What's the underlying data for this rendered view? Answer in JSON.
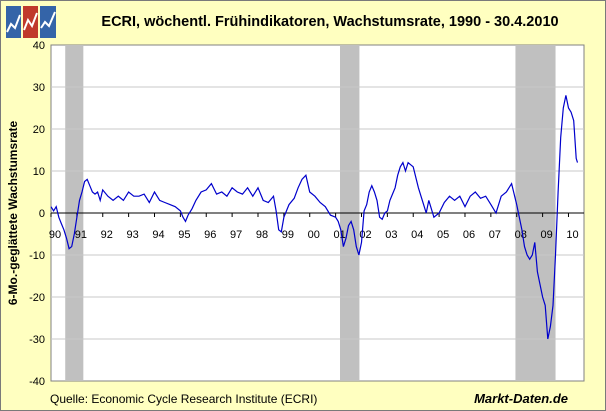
{
  "title": "ECRI, wöchentl. Frühindikatoren, Wachstumsrate, 1990 - 30.4.2010",
  "source": "Quelle: Economic Cycle Research Institute (ECRI)",
  "brand": "Markt-Daten.de",
  "colors": {
    "background": "#ffffc0",
    "plot_background": "#ffffff",
    "recession_shading": "#c0c0c0",
    "line": "#0000cc",
    "zero_line": "#000000",
    "grid": "#c8c8c8",
    "logo_blue": "#3464a8",
    "logo_red": "#c0392b"
  },
  "chart_data": {
    "type": "line",
    "title": "ECRI, wöchentl. Frühindikatoren, Wachstumsrate, 1990 - 30.4.2010",
    "xlabel": "",
    "ylabel": "6-Mo.-geglättete Wachstumsrate",
    "xlim": [
      1990.0,
      2010.6
    ],
    "ylim": [
      -40,
      40
    ],
    "yticks": [
      40,
      30,
      20,
      10,
      0,
      -10,
      -20,
      -30,
      -40
    ],
    "xtick_labels": [
      "90",
      "91",
      "92",
      "93",
      "94",
      "95",
      "96",
      "97",
      "98",
      "99",
      "00",
      "01",
      "02",
      "03",
      "04",
      "05",
      "06",
      "07",
      "08",
      "09",
      "10"
    ],
    "grid": true,
    "legend": "none",
    "recessions": [
      [
        1990.55,
        1991.25
      ],
      [
        2001.17,
        2001.92
      ],
      [
        2007.95,
        2009.5
      ]
    ],
    "series": [
      {
        "x": [
          1990.0,
          1990.1,
          1990.2,
          1990.3,
          1990.4,
          1990.5,
          1990.6,
          1990.7,
          1990.8,
          1990.9,
          1991.0,
          1991.1,
          1991.2,
          1991.3,
          1991.4,
          1991.5,
          1991.6,
          1991.7,
          1991.8,
          1991.9,
          1992.0,
          1992.2,
          1992.4,
          1992.6,
          1992.8,
          1993.0,
          1993.2,
          1993.4,
          1993.6,
          1993.8,
          1994.0,
          1994.2,
          1994.4,
          1994.6,
          1994.8,
          1995.0,
          1995.1,
          1995.2,
          1995.3,
          1995.45,
          1995.6,
          1995.8,
          1996.0,
          1996.2,
          1996.4,
          1996.6,
          1996.8,
          1997.0,
          1997.2,
          1997.4,
          1997.6,
          1997.8,
          1998.0,
          1998.2,
          1998.4,
          1998.6,
          1998.7,
          1998.8,
          1998.9,
          1999.0,
          1999.2,
          1999.4,
          1999.55,
          1999.7,
          1999.85,
          2000.0,
          2000.2,
          2000.4,
          2000.6,
          2000.8,
          2001.0,
          2001.1,
          2001.2,
          2001.3,
          2001.4,
          2001.5,
          2001.6,
          2001.7,
          2001.8,
          2001.9,
          2002.0,
          2002.1,
          2002.2,
          2002.3,
          2002.4,
          2002.5,
          2002.6,
          2002.7,
          2002.8,
          2002.9,
          2003.0,
          2003.1,
          2003.2,
          2003.3,
          2003.4,
          2003.5,
          2003.6,
          2003.7,
          2003.8,
          2004.0,
          2004.2,
          2004.4,
          2004.5,
          2004.6,
          2004.8,
          2005.0,
          2005.2,
          2005.4,
          2005.6,
          2005.8,
          2006.0,
          2006.2,
          2006.4,
          2006.6,
          2006.8,
          2007.0,
          2007.2,
          2007.4,
          2007.6,
          2007.8,
          2008.0,
          2008.1,
          2008.2,
          2008.3,
          2008.4,
          2008.5,
          2008.6,
          2008.7,
          2008.8,
          2008.9,
          2009.0,
          2009.1,
          2009.2,
          2009.3,
          2009.4,
          2009.5,
          2009.6,
          2009.7,
          2009.8,
          2009.9,
          2010.0,
          2010.1,
          2010.2,
          2010.3,
          2010.35
        ],
        "y": [
          1.5,
          0.5,
          1.5,
          -1.0,
          -2.5,
          -4.0,
          -6.0,
          -8.5,
          -8.0,
          -5.0,
          -1.0,
          3.0,
          5.0,
          7.5,
          8.0,
          6.5,
          5.0,
          4.5,
          5.0,
          3.0,
          5.5,
          4.0,
          3.0,
          4.0,
          3.0,
          5.0,
          4.0,
          4.0,
          4.5,
          2.5,
          5.0,
          3.0,
          2.5,
          2.0,
          1.5,
          0.5,
          -1.0,
          -2.0,
          -0.5,
          1.0,
          3.0,
          5.0,
          5.5,
          7.0,
          4.5,
          5.0,
          4.0,
          6.0,
          5.0,
          4.5,
          6.0,
          4.0,
          6.0,
          3.0,
          2.5,
          4.0,
          0.5,
          -4.0,
          -4.5,
          -1.0,
          2.0,
          3.5,
          6.0,
          8.0,
          9.0,
          5.0,
          4.0,
          2.5,
          1.5,
          -0.5,
          -1.0,
          -2.0,
          -4.0,
          -8.0,
          -6.0,
          -3.0,
          -2.0,
          -4.0,
          -8.0,
          -10.0,
          -7.0,
          0.5,
          2.0,
          5.0,
          6.5,
          5.0,
          3.0,
          -1.0,
          -1.5,
          0.0,
          0.5,
          3.0,
          4.5,
          6.0,
          9.0,
          11.0,
          12.0,
          10.0,
          12.0,
          11.0,
          6.0,
          2.0,
          0.0,
          3.0,
          -1.0,
          0.0,
          2.5,
          4.0,
          3.0,
          4.0,
          1.5,
          4.0,
          5.0,
          3.5,
          4.0,
          2.0,
          0.0,
          4.0,
          5.0,
          7.0,
          2.0,
          -1.0,
          -4.0,
          -8.0,
          -10.0,
          -11.0,
          -10.0,
          -7.0,
          -14.0,
          -17.0,
          -20.0,
          -22.0,
          -30.0,
          -27.0,
          -22.0,
          -10.0,
          5.0,
          18.0,
          25.0,
          28.0,
          25.0,
          24.0,
          22.0,
          13.0,
          12.0
        ]
      }
    ]
  }
}
